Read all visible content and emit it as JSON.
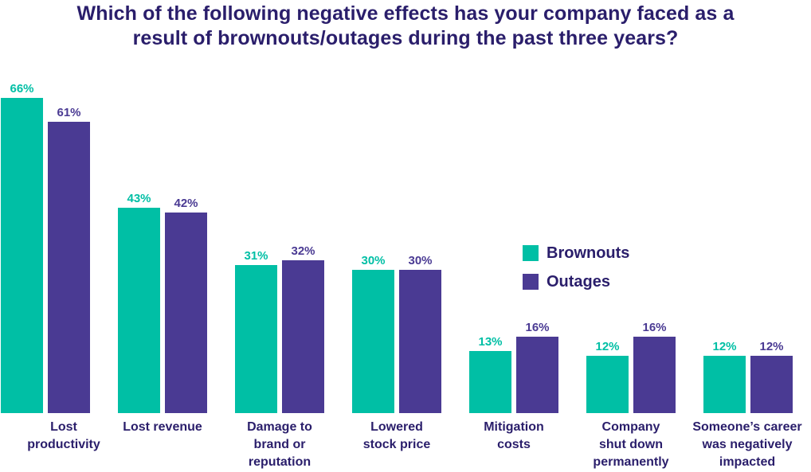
{
  "title_lines": [
    "Which of the following negative effects has your company faced as a",
    "result of brownouts/outages during the past three years?"
  ],
  "colors": {
    "brownouts": "#00bfa5",
    "outages": "#4a3a93",
    "text": "#2a1e6b"
  },
  "chart_data": {
    "type": "bar",
    "title": "Which of the following negative effects has your company faced as a result of brownouts/outages during the past three years?",
    "categories": [
      [
        "Lost",
        "productivity"
      ],
      [
        "Lost revenue"
      ],
      [
        "Damage to",
        "brand or",
        "reputation"
      ],
      [
        "Lowered",
        "stock price"
      ],
      [
        "Mitigation",
        "costs"
      ],
      [
        "Company",
        "shut down",
        "permanently"
      ],
      [
        "Someone’s career",
        "was negatively",
        "impacted"
      ]
    ],
    "series": [
      {
        "name": "Brownouts",
        "values": [
          66,
          43,
          31,
          30,
          13,
          12,
          12
        ],
        "labels": [
          "66%",
          "43%",
          "31%",
          "30%",
          "13%",
          "12%",
          "12%"
        ]
      },
      {
        "name": "Outages",
        "values": [
          61,
          42,
          32,
          30,
          16,
          16,
          12
        ],
        "labels": [
          "61%",
          "42%",
          "32%",
          "30%",
          "16%",
          "16%",
          "12%"
        ]
      }
    ],
    "ylim": [
      0,
      70
    ],
    "xlabel": "",
    "ylabel": "",
    "legend": "right-middle"
  }
}
